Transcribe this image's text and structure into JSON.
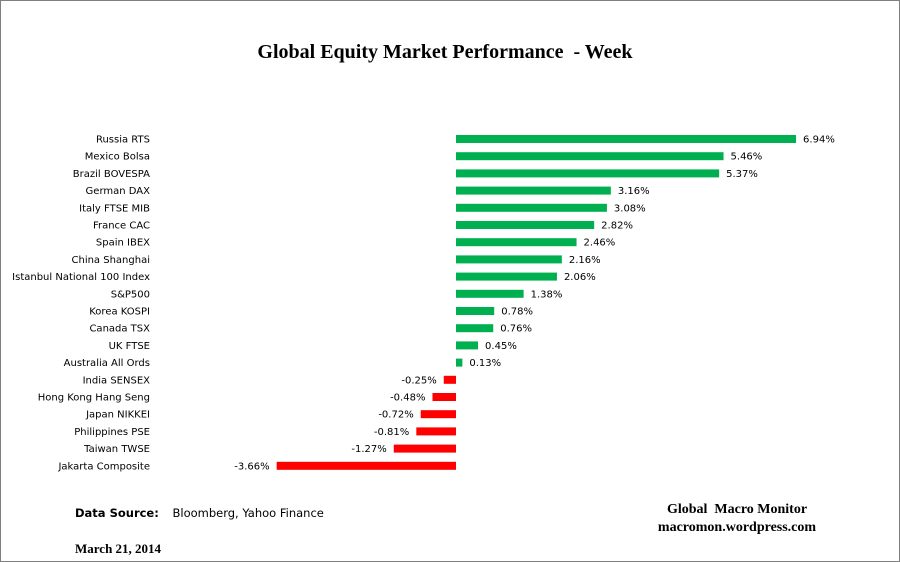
{
  "chart_data": {
    "type": "bar",
    "orientation": "horizontal",
    "title": "Global Equity Market Performance  - Week",
    "categories": [
      "Russia RTS",
      "Mexico Bolsa",
      "Brazil BOVESPA",
      "German DAX",
      "Italy FTSE MIB",
      "France CAC",
      "Spain IBEX",
      "China Shanghai",
      "Istanbul National 100 Index",
      "S&P500",
      "Korea KOSPI",
      "Canada TSX",
      "UK FTSE",
      "Australia All Ords",
      "India SENSEX",
      "Hong Kong Hang Seng",
      "Japan NIKKEI",
      "Philippines PSE",
      "Taiwan  TWSE",
      "Jakarta Composite"
    ],
    "values": [
      6.94,
      5.46,
      5.37,
      3.16,
      3.08,
      2.82,
      2.46,
      2.16,
      2.06,
      1.38,
      0.78,
      0.76,
      0.45,
      0.13,
      -0.25,
      -0.48,
      -0.72,
      -0.81,
      -1.27,
      -3.66
    ],
    "value_labels": [
      "6.94%",
      "5.46%",
      "5.37%",
      "3.16%",
      "3.08%",
      "2.82%",
      "2.46%",
      "2.16%",
      "2.06%",
      "1.38%",
      "0.78%",
      "0.76%",
      "0.45%",
      "0.13%",
      "-0.25%",
      "-0.48%",
      "-0.72%",
      "-0.81%",
      "-1.27%",
      "-3.66%"
    ],
    "unit": "%",
    "grid": false,
    "legend": "none",
    "colors": {
      "positive": "#00b050",
      "negative": "#ff0000"
    }
  },
  "footer": {
    "source_key": "Data Source:",
    "source_value": "Bloomberg, Yahoo Finance",
    "date": "March 21, 2014",
    "brand_name": "Global  Macro Monitor",
    "brand_url": "macromon.wordpress.com"
  }
}
